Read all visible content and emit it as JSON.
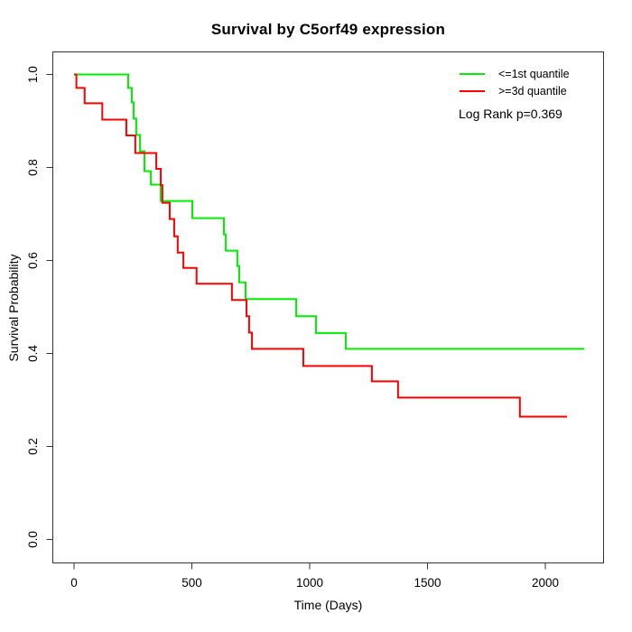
{
  "title": "Survival by C5orf49 expression",
  "axes": {
    "x_label": "Time (Days)",
    "y_label": "Survival Probability"
  },
  "legend": {
    "items": [
      {
        "label": "<=1st quantile",
        "color": "#00ee00"
      },
      {
        "label": ">=3d quantile",
        "color": "#ff0000"
      }
    ]
  },
  "annotation": "Log Rank p=0.369",
  "chart_data": {
    "type": "line",
    "subtype": "kaplan_meier_step",
    "title": "Survival by C5orf49 expression",
    "xlabel": "Time (Days)",
    "ylabel": "Survival Probability",
    "xlim": [
      0,
      2165
    ],
    "ylim": [
      0,
      1
    ],
    "x_ticks": [
      0,
      500,
      1000,
      1500,
      2000
    ],
    "y_ticks": [
      0.0,
      0.2,
      0.4,
      0.6,
      0.8,
      1.0
    ],
    "grid": false,
    "legend_position": "top-right-inside",
    "annotation": "Log Rank p=0.369",
    "series": [
      {
        "name": "<=1st quantile",
        "color": "#00ee00",
        "steps": [
          [
            0,
            1.0
          ],
          [
            230,
            0.971
          ],
          [
            245,
            0.94
          ],
          [
            253,
            0.905
          ],
          [
            264,
            0.87
          ],
          [
            280,
            0.835
          ],
          [
            299,
            0.792
          ],
          [
            326,
            0.763
          ],
          [
            368,
            0.728
          ],
          [
            502,
            0.691
          ],
          [
            636,
            0.656
          ],
          [
            644,
            0.621
          ],
          [
            693,
            0.588
          ],
          [
            701,
            0.553
          ],
          [
            728,
            0.517
          ],
          [
            943,
            0.48
          ],
          [
            1027,
            0.444
          ],
          [
            1153,
            0.41
          ]
        ],
        "end_time": 2165
      },
      {
        "name": ">=3d quantile",
        "color": "#ff0000",
        "steps": [
          [
            0,
            1.0
          ],
          [
            10,
            0.971
          ],
          [
            45,
            0.938
          ],
          [
            120,
            0.903
          ],
          [
            222,
            0.869
          ],
          [
            260,
            0.831
          ],
          [
            349,
            0.797
          ],
          [
            368,
            0.762
          ],
          [
            375,
            0.724
          ],
          [
            406,
            0.689
          ],
          [
            425,
            0.652
          ],
          [
            440,
            0.617
          ],
          [
            464,
            0.584
          ],
          [
            520,
            0.55
          ],
          [
            670,
            0.515
          ],
          [
            732,
            0.48
          ],
          [
            743,
            0.445
          ],
          [
            755,
            0.41
          ],
          [
            973,
            0.373
          ],
          [
            1264,
            0.34
          ],
          [
            1375,
            0.305
          ],
          [
            1892,
            0.264
          ]
        ],
        "end_time": 2092
      }
    ]
  }
}
